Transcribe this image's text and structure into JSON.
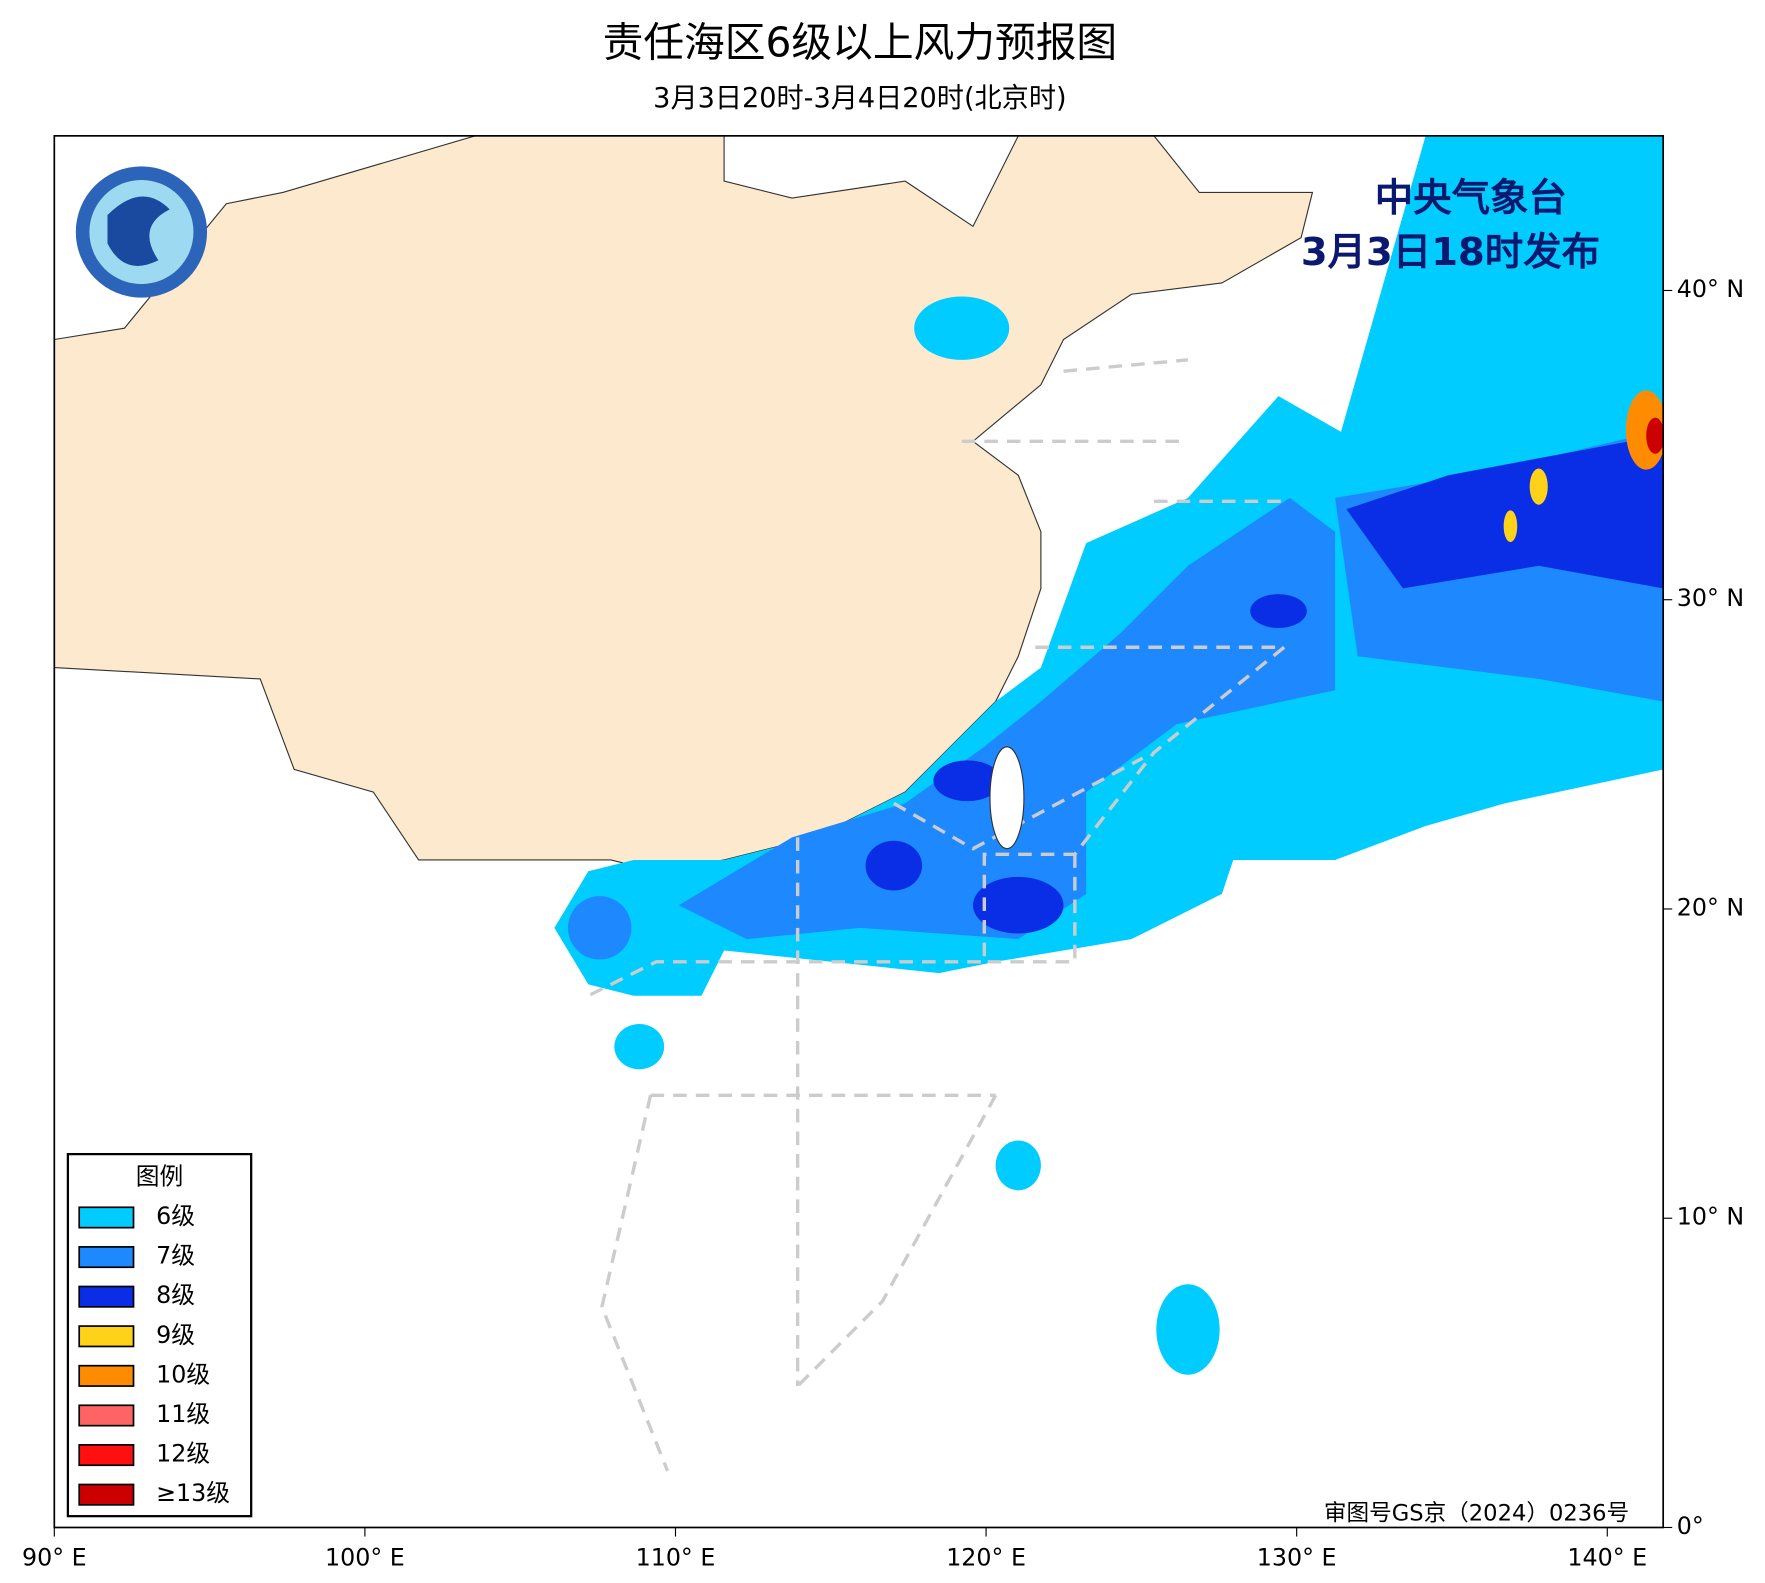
{
  "map": {
    "title": "责任海区6级以上风力预报图",
    "subtitle": "3月3日20时-3月4日20时(北京时)",
    "issuer": "中央气象台",
    "issue_time": "3月3日18时发布",
    "xlim": [
      90,
      141.8
    ],
    "ylim": [
      0,
      45
    ],
    "xticks": [
      {
        "value": 90,
        "label": "90° E"
      },
      {
        "value": 100,
        "label": "100° E"
      },
      {
        "value": 110,
        "label": "110° E"
      },
      {
        "value": 120,
        "label": "120° E"
      },
      {
        "value": 130,
        "label": "130° E"
      },
      {
        "value": 140,
        "label": "140° E"
      }
    ],
    "yticks": [
      {
        "value": 0,
        "label": "0°"
      },
      {
        "value": 10,
        "label": "10° N"
      },
      {
        "value": 20,
        "label": "20° N"
      },
      {
        "value": 30,
        "label": "30° N"
      },
      {
        "value": 40,
        "label": "40° N"
      }
    ],
    "legend": {
      "title": "图例",
      "items": [
        {
          "label": "6级",
          "color": "#00ccff"
        },
        {
          "label": "7级",
          "color": "#1e88ff"
        },
        {
          "label": "8级",
          "color": "#0a2ee6"
        },
        {
          "label": "9级",
          "color": "#ffd21a"
        },
        {
          "label": "10级",
          "color": "#ff8c00"
        },
        {
          "label": "11级",
          "color": "#ff6464"
        },
        {
          "label": "12级",
          "color": "#ff1010"
        },
        {
          "label": "≥13级",
          "color": "#cc0000"
        }
      ]
    },
    "copyright": "审图号GS京（2024）0236号"
  }
}
